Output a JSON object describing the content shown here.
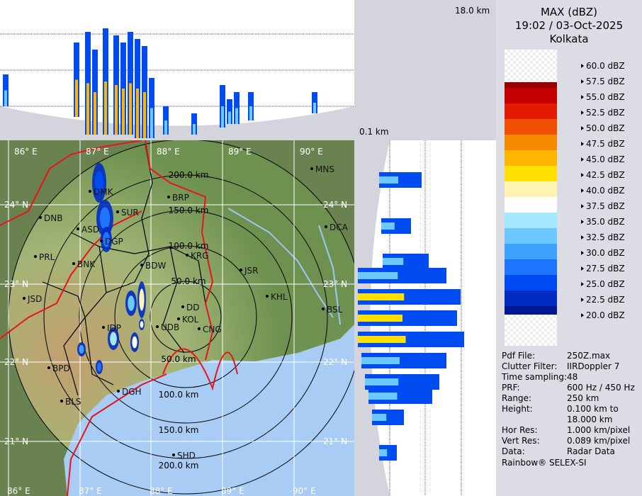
{
  "product": {
    "title": "MAX (dBZ)",
    "datetime": "19:02 / 03-Oct-2025",
    "site": "Kolkata"
  },
  "section_labels": {
    "top_height": "18.0 km",
    "bottom_height": "0.1 km"
  },
  "legend": [
    {
      "label": "60.0 dBZ",
      "color": ""
    },
    {
      "label": "57.5 dBZ",
      "color": "#9b0000"
    },
    {
      "label": "55.0 dBZ",
      "color": "#c40000"
    },
    {
      "label": "52.5 dBZ",
      "color": "#e41a00"
    },
    {
      "label": "50.0 dBZ",
      "color": "#f05000"
    },
    {
      "label": "47.5 dBZ",
      "color": "#f88a00"
    },
    {
      "label": "45.0 dBZ",
      "color": "#ffb400"
    },
    {
      "label": "42.5 dBZ",
      "color": "#ffe000"
    },
    {
      "label": "40.0 dBZ",
      "color": "#fff4b4"
    },
    {
      "label": "37.5 dBZ",
      "color": "#ffffff"
    },
    {
      "label": "35.0 dBZ",
      "color": "#a4e8ff"
    },
    {
      "label": "32.5 dBZ",
      "color": "#6cc8ff"
    },
    {
      "label": "30.0 dBZ",
      "color": "#3ca4ff"
    },
    {
      "label": "27.5 dBZ",
      "color": "#1c74ff"
    },
    {
      "label": "25.0 dBZ",
      "color": "#004cf0"
    },
    {
      "label": "22.5 dBZ",
      "color": "#002cc4"
    },
    {
      "label": "20.0 dBZ",
      "color": "#001890"
    }
  ],
  "info": [
    {
      "key": "Pdf File:",
      "value": "250Z.max"
    },
    {
      "key": "Clutter Filter:",
      "value": "IIRDoppler 7"
    },
    {
      "key": "Time sampling:",
      "value": "48"
    },
    {
      "key": "PRF:",
      "value": "600 Hz / 450 Hz"
    },
    {
      "key": "Range:",
      "value": "250 km"
    },
    {
      "key": "Height:",
      "value": "0.100 km to"
    },
    {
      "key": "",
      "value": "18.000 km"
    },
    {
      "key": "Hor Res:",
      "value": "1.000 km/pixel"
    },
    {
      "key": "Vert Res:",
      "value": "0.089 km/pixel"
    },
    {
      "key": "Data:",
      "value": "Radar Data"
    }
  ],
  "credit": "Rainbow® SELEX-SI",
  "map": {
    "lon_labels": [
      "86° E",
      "87° E",
      "88° E",
      "89° E",
      "90° E"
    ],
    "lat_labels": [
      "24° N",
      "23° N",
      "22° N",
      "21° N"
    ],
    "ring_labels": [
      "50.0 km",
      "100.0 km",
      "150.0 km",
      "200.0 km"
    ],
    "south_ring_labels": [
      "50.0 km",
      "100.0 km",
      "150.0 km",
      "200.0 km"
    ],
    "cities": [
      "MNS",
      "BRP",
      "DMK",
      "SUR",
      "DNB",
      "ASD",
      "DGP",
      "KRG",
      "PRL",
      "BNK",
      "BDW",
      "JSR",
      "KHL",
      "JSD",
      "BSL",
      "DCA",
      "DD",
      "KOL",
      "UDB",
      "CNG",
      "IDP",
      "BPD",
      "DGH",
      "BLS",
      "SHD"
    ],
    "colors": {
      "land": "#6e9250",
      "sea": "#a8ccf4",
      "border": "#e8141c",
      "district": "#000000",
      "grid": "#ffffff"
    }
  }
}
